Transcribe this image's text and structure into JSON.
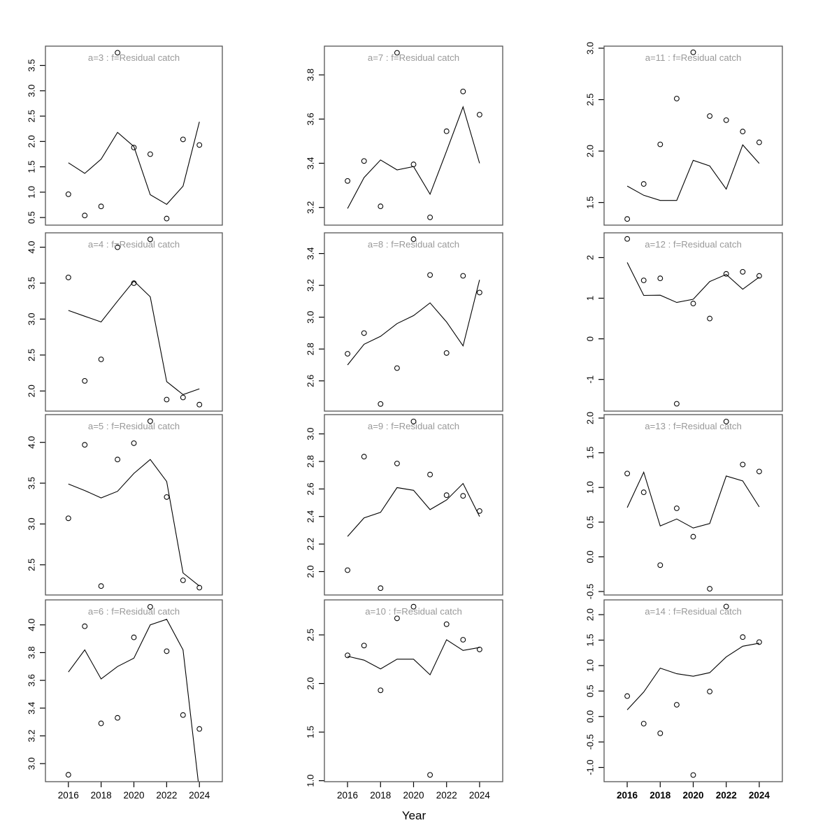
{
  "shared": {
    "xlabel": "Year",
    "x": [
      2016,
      2017,
      2018,
      2019,
      2020,
      2021,
      2022,
      2023,
      2024
    ],
    "xlim": [
      2014.6,
      2025.4
    ],
    "xticks": [
      2016,
      2018,
      2020,
      2022,
      2024
    ],
    "xtick_labels": [
      "2016",
      "2018",
      "2020",
      "2022",
      "2024"
    ],
    "line_color": "#000000",
    "point_color": "#000000",
    "title_color": "#999999",
    "border_color": "#555555"
  },
  "chart_data": [
    {
      "type": "scatter+line",
      "title": "a=3 : f=Residual catch",
      "panel": "a=3",
      "ylim": [
        0.35,
        3.88
      ],
      "yticks": [
        0.5,
        1.0,
        1.5,
        2.0,
        2.5,
        3.0,
        3.5
      ],
      "ytick_labels": [
        "0.5",
        "1.0",
        "1.5",
        "2.0",
        "2.5",
        "3.0",
        "3.5"
      ],
      "points": [
        0.96,
        0.54,
        0.72,
        3.75,
        1.88,
        1.75,
        0.48,
        2.04,
        1.93
      ],
      "line": [
        1.58,
        1.37,
        1.65,
        2.18,
        1.9,
        0.95,
        0.76,
        1.12,
        2.39
      ],
      "xbold": false
    },
    {
      "type": "scatter+line",
      "title": "a=4 : f=Residual catch",
      "panel": "a=4",
      "ylim": [
        1.72,
        4.2
      ],
      "yticks": [
        2.0,
        2.5,
        3.0,
        3.5,
        4.0
      ],
      "ytick_labels": [
        "2.0",
        "2.5",
        "3.0",
        "3.5",
        "4.0"
      ],
      "points": [
        3.58,
        2.14,
        2.44,
        4.0,
        3.5,
        4.11,
        1.88,
        1.91,
        1.81
      ],
      "line": [
        3.12,
        3.04,
        2.96,
        3.25,
        3.53,
        3.31,
        2.13,
        1.95,
        2.03
      ],
      "xbold": false
    },
    {
      "type": "scatter+line",
      "title": "a=5 : f=Residual catch",
      "panel": "a=5",
      "ylim": [
        2.13,
        4.34
      ],
      "yticks": [
        2.5,
        3.0,
        3.5,
        4.0
      ],
      "ytick_labels": [
        "2.5",
        "3.0",
        "3.5",
        "4.0"
      ],
      "points": [
        3.07,
        3.97,
        2.24,
        3.79,
        3.99,
        4.26,
        3.33,
        2.31,
        2.22
      ],
      "line": [
        3.49,
        3.41,
        3.32,
        3.4,
        3.62,
        3.79,
        3.52,
        2.4,
        2.24
      ],
      "xbold": false
    },
    {
      "type": "scatter+line",
      "title": "a=6 : f=Residual catch",
      "panel": "a=6",
      "ylim": [
        2.87,
        4.18
      ],
      "yticks": [
        3.0,
        3.2,
        3.4,
        3.6,
        3.8,
        4.0
      ],
      "ytick_labels": [
        "3.0",
        "3.2",
        "3.4",
        "3.6",
        "3.8",
        "4.0"
      ],
      "points": [
        2.92,
        3.99,
        3.29,
        3.33,
        3.91,
        4.13,
        3.81,
        3.35,
        3.25
      ],
      "line": [
        3.66,
        3.82,
        3.61,
        3.7,
        3.76,
        4.0,
        4.04,
        3.82,
        2.8
      ],
      "xbold": false
    },
    {
      "type": "scatter+line",
      "title": "a=7 : f=Residual catch",
      "panel": "a=7",
      "ylim": [
        3.12,
        3.93
      ],
      "yticks": [
        3.2,
        3.4,
        3.6,
        3.8
      ],
      "ytick_labels": [
        "3.2",
        "3.4",
        "3.6",
        "3.8"
      ],
      "points": [
        3.32,
        3.41,
        3.205,
        3.9,
        3.395,
        3.155,
        3.545,
        3.725,
        3.62
      ],
      "line": [
        3.195,
        3.335,
        3.415,
        3.37,
        3.385,
        3.26,
        3.455,
        3.655,
        3.4
      ],
      "xbold": false
    },
    {
      "type": "scatter+line",
      "title": "a=8 : f=Residual catch",
      "panel": "a=8",
      "ylim": [
        2.41,
        3.53
      ],
      "yticks": [
        2.6,
        2.8,
        3.0,
        3.2,
        3.4
      ],
      "ytick_labels": [
        "2.6",
        "2.8",
        "3.0",
        "3.2",
        "3.4"
      ],
      "points": [
        2.77,
        2.9,
        2.455,
        2.68,
        3.49,
        3.265,
        2.775,
        3.26,
        3.155
      ],
      "line": [
        2.7,
        2.83,
        2.88,
        2.96,
        3.01,
        3.09,
        2.97,
        2.82,
        3.235
      ],
      "xbold": false
    },
    {
      "type": "scatter+line",
      "title": "a=9 : f=Residual catch",
      "panel": "a=9",
      "ylim": [
        1.83,
        3.14
      ],
      "yticks": [
        2.0,
        2.2,
        2.4,
        2.6,
        2.8,
        3.0
      ],
      "ytick_labels": [
        "2.0",
        "2.2",
        "2.4",
        "2.6",
        "2.8",
        "3.0"
      ],
      "points": [
        2.01,
        2.835,
        1.88,
        2.785,
        3.09,
        2.705,
        2.555,
        2.55,
        2.44
      ],
      "line": [
        2.255,
        2.39,
        2.43,
        2.61,
        2.59,
        2.45,
        2.52,
        2.64,
        2.4
      ],
      "xbold": false
    },
    {
      "type": "scatter+line",
      "title": "a=10 : f=Residual catch",
      "panel": "a=10",
      "ylim": [
        0.99,
        2.86
      ],
      "yticks": [
        1.0,
        1.5,
        2.0,
        2.5
      ],
      "ytick_labels": [
        "1.0",
        "1.5",
        "2.0",
        "2.5"
      ],
      "points": [
        2.29,
        2.39,
        1.93,
        2.67,
        2.79,
        1.06,
        2.61,
        2.45,
        2.35
      ],
      "line": [
        2.28,
        2.24,
        2.15,
        2.25,
        2.25,
        2.09,
        2.45,
        2.34,
        2.37
      ],
      "xbold": false
    },
    {
      "type": "scatter+line",
      "title": "a=11 : f=Residual catch",
      "panel": "a=11",
      "ylim": [
        1.28,
        3.02
      ],
      "yticks": [
        1.5,
        2.0,
        2.5,
        3.0
      ],
      "ytick_labels": [
        "1.5",
        "2.0",
        "2.5",
        "3.0"
      ],
      "points": [
        1.34,
        1.68,
        2.065,
        2.51,
        2.96,
        2.34,
        2.3,
        2.19,
        2.085
      ],
      "line": [
        1.66,
        1.57,
        1.52,
        1.52,
        1.91,
        1.855,
        1.63,
        2.06,
        1.88
      ],
      "xbold": true
    },
    {
      "type": "scatter+line",
      "title": "a=12 : f=Residual catch",
      "panel": "a=12",
      "ylim": [
        -1.78,
        2.61
      ],
      "yticks": [
        -1,
        0,
        1,
        2
      ],
      "ytick_labels": [
        "-1",
        "0",
        "1",
        "2"
      ],
      "points": [
        2.46,
        1.44,
        1.49,
        -1.6,
        0.87,
        0.5,
        1.6,
        1.65,
        1.55
      ],
      "line": [
        1.88,
        1.07,
        1.075,
        0.895,
        0.975,
        1.41,
        1.585,
        1.22,
        1.52
      ],
      "xbold": true
    },
    {
      "type": "scatter+line",
      "title": "a=13 : f=Residual catch",
      "panel": "a=13",
      "ylim": [
        -0.55,
        2.05
      ],
      "yticks": [
        -0.5,
        0.0,
        0.5,
        1.0,
        1.5,
        2.0
      ],
      "ytick_labels": [
        "-0.5",
        "0.0",
        "0.5",
        "1.0",
        "1.5",
        "2.0"
      ],
      "points": [
        1.2,
        0.93,
        -0.12,
        0.7,
        0.29,
        -0.46,
        1.95,
        1.33,
        1.23
      ],
      "line": [
        0.71,
        1.22,
        0.445,
        0.545,
        0.415,
        0.48,
        1.165,
        1.095,
        0.72
      ],
      "xbold": true
    },
    {
      "type": "scatter+line",
      "title": "a=14 : f=Residual catch",
      "panel": "a=14",
      "ylim": [
        -1.28,
        2.29
      ],
      "yticks": [
        -1.0,
        -0.5,
        0.0,
        0.5,
        1.0,
        1.5,
        2.0
      ],
      "ytick_labels": [
        "-1.0",
        "-0.5",
        "0.0",
        "0.5",
        "1.0",
        "1.5",
        "2.0"
      ],
      "points": [
        0.4,
        -0.14,
        -0.33,
        0.23,
        -1.15,
        0.49,
        2.16,
        1.56,
        1.46
      ],
      "line": [
        0.13,
        0.48,
        0.95,
        0.84,
        0.79,
        0.86,
        1.17,
        1.38,
        1.44
      ],
      "xbold": true
    }
  ]
}
